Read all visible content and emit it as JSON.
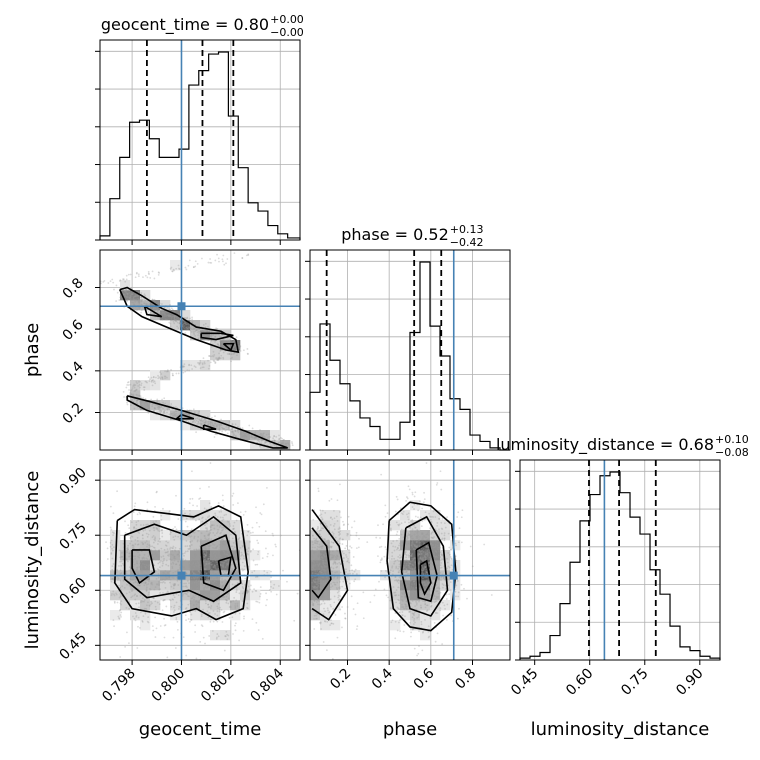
{
  "chart_data": {
    "type": "corner",
    "parameters": [
      "geocent_time",
      "phase",
      "luminosity_distance"
    ],
    "titles": {
      "geocent_time": {
        "prefix": "geocent_time = 0.80",
        "plus": "+0.00",
        "minus": "−0.00"
      },
      "phase": {
        "prefix": "phase = 0.52",
        "plus": "+0.13",
        "minus": "−0.42"
      },
      "luminosity_distance": {
        "prefix": "luminosity_distance = 0.68",
        "plus": "+0.10",
        "minus": "−0.08"
      }
    },
    "ranges": {
      "geocent_time": [
        0.7967,
        0.8048
      ],
      "phase": [
        0.02,
        0.98
      ],
      "luminosity_distance": [
        0.41,
        0.955
      ]
    },
    "ticks": {
      "geocent_time": [
        0.798,
        0.8,
        0.802,
        0.804
      ],
      "phase": [
        0.2,
        0.4,
        0.6,
        0.8
      ],
      "luminosity_distance": [
        0.45,
        0.6,
        0.75,
        0.9
      ]
    },
    "tick_labels": {
      "geocent_time": [
        "0.798",
        "0.800",
        "0.802",
        "0.804"
      ],
      "phase": [
        "0.2",
        "0.4",
        "0.6",
        "0.8"
      ],
      "luminosity_distance": [
        "0.45",
        "0.60",
        "0.75",
        "0.90"
      ]
    },
    "truths": {
      "geocent_time": 0.8,
      "phase": 0.71,
      "luminosity_distance": 0.64
    },
    "quantiles": {
      "geocent_time": [
        0.7986,
        0.80085,
        0.8021
      ],
      "phase": [
        0.1,
        0.52,
        0.65
      ],
      "luminosity_distance": [
        0.598,
        0.68,
        0.78
      ]
    },
    "histograms": {
      "geocent_time": {
        "bin_edges": [
          0.7967,
          0.7971,
          0.7975,
          0.7979,
          0.7983,
          0.7987,
          0.7991,
          0.7995,
          0.7999,
          0.8003,
          0.8007,
          0.8011,
          0.8015,
          0.8019,
          0.8023,
          0.8027,
          0.8031,
          0.8035,
          0.8039,
          0.8043,
          0.8048
        ],
        "counts": [
          2,
          20,
          40,
          57,
          58,
          49,
          40,
          40,
          44,
          75,
          82,
          90,
          91,
          60,
          35,
          18,
          14,
          7,
          3,
          1
        ]
      },
      "phase": {
        "bin_edges": [
          0.02,
          0.068,
          0.116,
          0.164,
          0.212,
          0.26,
          0.308,
          0.356,
          0.404,
          0.452,
          0.5,
          0.548,
          0.596,
          0.644,
          0.692,
          0.74,
          0.788,
          0.836,
          0.884,
          0.932,
          0.98
        ],
        "counts": [
          27,
          59,
          42,
          31,
          23,
          15,
          11,
          5,
          5,
          13,
          55,
          88,
          58,
          44,
          24,
          19,
          7,
          4,
          1,
          0
        ]
      },
      "luminosity_distance": {
        "bin_edges": [
          0.41,
          0.4373,
          0.4645,
          0.4918,
          0.519,
          0.5463,
          0.5735,
          0.6008,
          0.628,
          0.6553,
          0.6825,
          0.7098,
          0.737,
          0.7643,
          0.7915,
          0.8188,
          0.846,
          0.8733,
          0.9005,
          0.9278,
          0.955
        ],
        "counts": [
          1,
          2,
          4,
          13,
          30,
          52,
          74,
          88,
          98,
          100,
          89,
          76,
          67,
          48,
          35,
          18,
          7,
          5,
          2,
          1
        ]
      }
    },
    "contours": {
      "phase_vs_geocent_time": [
        [
          [
            0.7975,
            0.79
          ],
          [
            0.7978,
            0.8
          ],
          [
            0.7984,
            0.76
          ],
          [
            0.7992,
            0.7
          ],
          [
            0.7998,
            0.67
          ],
          [
            0.8006,
            0.61
          ],
          [
            0.8016,
            0.59
          ],
          [
            0.8022,
            0.55
          ],
          [
            0.8023,
            0.49
          ],
          [
            0.8018,
            0.5
          ],
          [
            0.8006,
            0.55
          ],
          [
            0.7994,
            0.61
          ],
          [
            0.7984,
            0.66
          ],
          [
            0.7978,
            0.71
          ],
          [
            0.7975,
            0.79
          ]
        ],
        [
          [
            0.7985,
            0.71
          ],
          [
            0.7992,
            0.66
          ],
          [
            0.7986,
            0.67
          ],
          [
            0.7985,
            0.71
          ]
        ],
        [
          [
            0.8008,
            0.58
          ],
          [
            0.8016,
            0.58
          ],
          [
            0.8021,
            0.57
          ],
          [
            0.8014,
            0.55
          ],
          [
            0.8008,
            0.56
          ],
          [
            0.8008,
            0.58
          ]
        ],
        [
          [
            0.8017,
            0.53
          ],
          [
            0.8021,
            0.53
          ],
          [
            0.802,
            0.5
          ],
          [
            0.8017,
            0.53
          ]
        ],
        [
          [
            0.7978,
            0.28
          ],
          [
            0.7988,
            0.25
          ],
          [
            0.8,
            0.21
          ],
          [
            0.8014,
            0.16
          ],
          [
            0.8026,
            0.11
          ],
          [
            0.8036,
            0.06
          ],
          [
            0.8043,
            0.03
          ],
          [
            0.8037,
            0.03
          ],
          [
            0.8024,
            0.07
          ],
          [
            0.8012,
            0.11
          ],
          [
            0.8,
            0.16
          ],
          [
            0.7986,
            0.21
          ],
          [
            0.7978,
            0.26
          ],
          [
            0.7978,
            0.28
          ]
        ],
        [
          [
            0.8,
            0.19
          ],
          [
            0.8005,
            0.17
          ],
          [
            0.7998,
            0.17
          ],
          [
            0.8,
            0.19
          ]
        ],
        [
          [
            0.8009,
            0.14
          ],
          [
            0.8014,
            0.12
          ],
          [
            0.8009,
            0.12
          ],
          [
            0.8009,
            0.14
          ]
        ]
      ],
      "luminosity_distance_vs_geocent_time": [
        [
          [
            0.7974,
            0.79
          ],
          [
            0.7981,
            0.82
          ],
          [
            0.7993,
            0.81
          ],
          [
            0.8005,
            0.8
          ],
          [
            0.8015,
            0.83
          ],
          [
            0.8024,
            0.8
          ],
          [
            0.8027,
            0.65
          ],
          [
            0.8025,
            0.55
          ],
          [
            0.8014,
            0.52
          ],
          [
            0.8006,
            0.55
          ],
          [
            0.7996,
            0.53
          ],
          [
            0.798,
            0.55
          ],
          [
            0.7973,
            0.62
          ],
          [
            0.7974,
            0.79
          ]
        ],
        [
          [
            0.7977,
            0.75
          ],
          [
            0.7989,
            0.78
          ],
          [
            0.8002,
            0.75
          ],
          [
            0.8013,
            0.8
          ],
          [
            0.8022,
            0.75
          ],
          [
            0.8024,
            0.62
          ],
          [
            0.8013,
            0.57
          ],
          [
            0.8003,
            0.6
          ],
          [
            0.7986,
            0.58
          ],
          [
            0.7977,
            0.63
          ],
          [
            0.7977,
            0.75
          ]
        ],
        [
          [
            0.798,
            0.71
          ],
          [
            0.7987,
            0.71
          ],
          [
            0.7989,
            0.65
          ],
          [
            0.7983,
            0.62
          ],
          [
            0.798,
            0.66
          ],
          [
            0.798,
            0.71
          ]
        ],
        [
          [
            0.8008,
            0.72
          ],
          [
            0.8018,
            0.75
          ],
          [
            0.8022,
            0.66
          ],
          [
            0.8017,
            0.6
          ],
          [
            0.8009,
            0.62
          ],
          [
            0.8008,
            0.72
          ]
        ],
        [
          [
            0.8015,
            0.68
          ],
          [
            0.802,
            0.69
          ],
          [
            0.8019,
            0.64
          ],
          [
            0.8016,
            0.64
          ],
          [
            0.8015,
            0.68
          ]
        ]
      ],
      "luminosity_distance_vs_phase": [
        [
          [
            0.03,
            0.82
          ],
          [
            0.16,
            0.72
          ],
          [
            0.2,
            0.6
          ],
          [
            0.11,
            0.52
          ],
          [
            0.03,
            0.55
          ]
        ],
        [
          [
            0.03,
            0.77
          ],
          [
            0.1,
            0.72
          ],
          [
            0.12,
            0.63
          ],
          [
            0.06,
            0.58
          ],
          [
            0.03,
            0.6
          ]
        ],
        [
          [
            0.4,
            0.79
          ],
          [
            0.5,
            0.84
          ],
          [
            0.6,
            0.83
          ],
          [
            0.7,
            0.78
          ],
          [
            0.72,
            0.65
          ],
          [
            0.7,
            0.54
          ],
          [
            0.6,
            0.49
          ],
          [
            0.5,
            0.5
          ],
          [
            0.42,
            0.55
          ],
          [
            0.39,
            0.68
          ],
          [
            0.4,
            0.79
          ]
        ],
        [
          [
            0.48,
            0.77
          ],
          [
            0.58,
            0.8
          ],
          [
            0.66,
            0.72
          ],
          [
            0.68,
            0.6
          ],
          [
            0.6,
            0.53
          ],
          [
            0.5,
            0.55
          ],
          [
            0.46,
            0.65
          ],
          [
            0.48,
            0.77
          ]
        ],
        [
          [
            0.53,
            0.71
          ],
          [
            0.59,
            0.73
          ],
          [
            0.63,
            0.64
          ],
          [
            0.6,
            0.57
          ],
          [
            0.54,
            0.58
          ],
          [
            0.53,
            0.71
          ]
        ],
        [
          [
            0.55,
            0.67
          ],
          [
            0.58,
            0.68
          ],
          [
            0.6,
            0.62
          ],
          [
            0.57,
            0.59
          ],
          [
            0.55,
            0.62
          ],
          [
            0.55,
            0.67
          ]
        ]
      ]
    }
  }
}
